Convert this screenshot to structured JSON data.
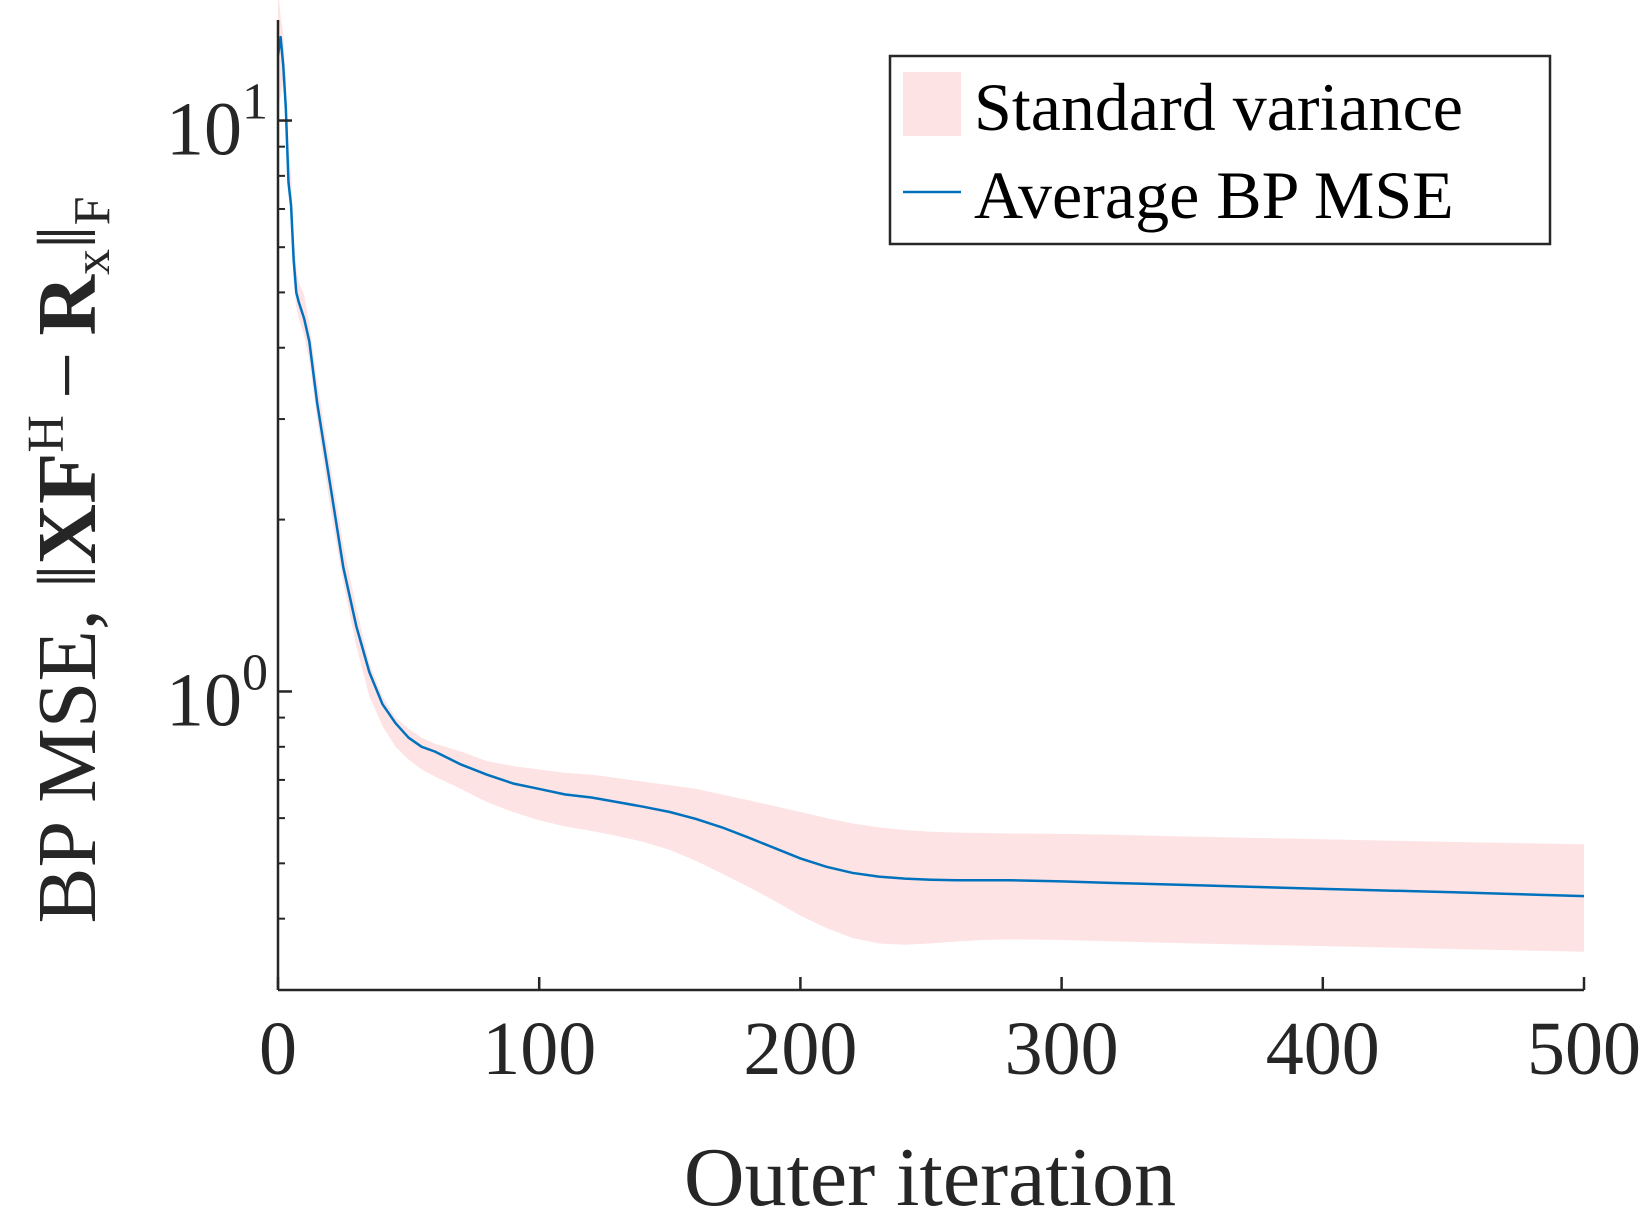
{
  "chart_data": {
    "type": "line",
    "title": "",
    "xlabel": "Outer iteration",
    "ylabel": {
      "prefix": "BP MSE, ",
      "norm_open": "‖",
      "matrix_x": "X",
      "matrix_f": "F",
      "superscript_h": "H",
      "minus": "−",
      "matrix_r": "R",
      "subscript_x": "x",
      "norm_close": "‖",
      "subscript_f": "F"
    },
    "x_scale": "linear",
    "y_scale": "log",
    "xlim": [
      0,
      500
    ],
    "ylim": [
      0.3,
      15
    ],
    "x_ticks": [
      0,
      100,
      200,
      300,
      400,
      500
    ],
    "x_tick_labels": [
      "0",
      "100",
      "200",
      "300",
      "400",
      "500"
    ],
    "y_ticks_major": [
      1,
      10
    ],
    "y_tick_labels": [
      {
        "base": "10",
        "exp": "0"
      },
      {
        "base": "10",
        "exp": "1"
      }
    ],
    "y_ticks_minor": [
      0.3,
      0.4,
      0.5,
      0.6,
      0.7,
      0.8,
      0.9,
      2,
      3,
      4,
      5,
      6,
      7,
      8,
      9
    ],
    "grid": false,
    "legend_position": "top-right",
    "series": [
      {
        "name": "Standard variance",
        "kind": "band",
        "color": "#fde3e4",
        "x": [
          0,
          1,
          2,
          3,
          4,
          5,
          6,
          7,
          8,
          10,
          12,
          15,
          20,
          25,
          30,
          35,
          40,
          45,
          50,
          55,
          60,
          70,
          80,
          90,
          100,
          110,
          120,
          130,
          140,
          150,
          160,
          170,
          180,
          190,
          200,
          210,
          220,
          230,
          240,
          250,
          260,
          270,
          280,
          300,
          320,
          350,
          400,
          450,
          500
        ],
        "lower": [
          10.5,
          11.0,
          11.8,
          9.8,
          7.6,
          6.9,
          5.2,
          4.7,
          4.5,
          4.2,
          3.8,
          3.0,
          2.1,
          1.55,
          1.2,
          0.98,
          0.87,
          0.8,
          0.76,
          0.73,
          0.71,
          0.675,
          0.64,
          0.615,
          0.595,
          0.58,
          0.57,
          0.558,
          0.545,
          0.528,
          0.505,
          0.48,
          0.455,
          0.43,
          0.405,
          0.385,
          0.37,
          0.362,
          0.36,
          0.362,
          0.365,
          0.367,
          0.368,
          0.367,
          0.365,
          0.362,
          0.358,
          0.354,
          0.35
        ],
        "upper": [
          17.0,
          15.2,
          14.2,
          11.8,
          9.0,
          8.0,
          6.3,
          5.5,
          5.2,
          4.95,
          4.4,
          3.5,
          2.5,
          1.8,
          1.4,
          1.12,
          0.98,
          0.9,
          0.86,
          0.83,
          0.81,
          0.785,
          0.755,
          0.74,
          0.73,
          0.72,
          0.715,
          0.705,
          0.695,
          0.685,
          0.675,
          0.66,
          0.645,
          0.63,
          0.615,
          0.6,
          0.587,
          0.578,
          0.572,
          0.568,
          0.566,
          0.565,
          0.564,
          0.563,
          0.561,
          0.557,
          0.551,
          0.545,
          0.54
        ]
      },
      {
        "name": "Average BP MSE",
        "kind": "line",
        "color": "#0072bd",
        "x": [
          0,
          1,
          2,
          3,
          4,
          5,
          6,
          7,
          8,
          10,
          12,
          15,
          20,
          25,
          30,
          35,
          40,
          45,
          50,
          55,
          60,
          70,
          80,
          90,
          100,
          110,
          120,
          130,
          140,
          150,
          160,
          170,
          180,
          190,
          200,
          210,
          220,
          230,
          240,
          250,
          260,
          270,
          280,
          300,
          320,
          350,
          400,
          450,
          500
        ],
        "values": [
          13.0,
          14.0,
          12.5,
          10.5,
          7.8,
          7.1,
          5.7,
          5.0,
          4.8,
          4.5,
          4.1,
          3.2,
          2.3,
          1.65,
          1.3,
          1.08,
          0.95,
          0.88,
          0.83,
          0.8,
          0.785,
          0.745,
          0.715,
          0.69,
          0.675,
          0.66,
          0.652,
          0.64,
          0.628,
          0.615,
          0.598,
          0.578,
          0.555,
          0.532,
          0.51,
          0.493,
          0.481,
          0.474,
          0.47,
          0.468,
          0.467,
          0.467,
          0.467,
          0.465,
          0.462,
          0.458,
          0.451,
          0.445,
          0.438
        ]
      }
    ]
  }
}
